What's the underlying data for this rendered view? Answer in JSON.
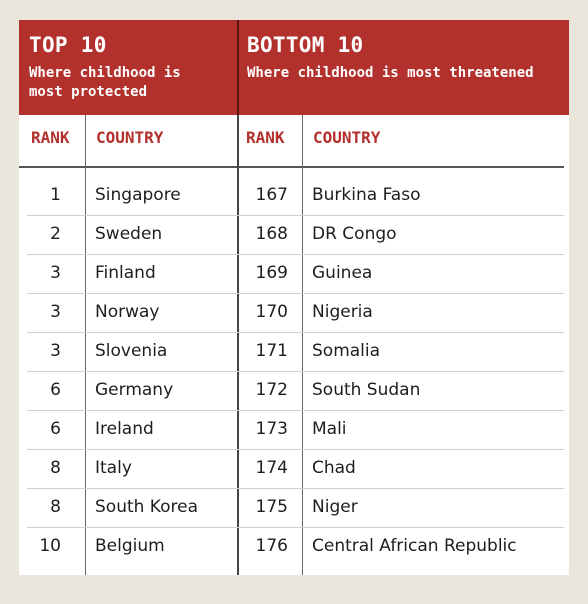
{
  "top": {
    "title": "TOP 10",
    "subtitle": "Where childhood is\nmost protected",
    "rank_header": "RANK",
    "country_header": "COUNTRY",
    "rows": [
      {
        "rank": "1",
        "country": "Singapore"
      },
      {
        "rank": "2",
        "country": "Sweden"
      },
      {
        "rank": "3",
        "country": "Finland"
      },
      {
        "rank": "3",
        "country": "Norway"
      },
      {
        "rank": "3",
        "country": "Slovenia"
      },
      {
        "rank": "6",
        "country": "Germany"
      },
      {
        "rank": "6",
        "country": "Ireland"
      },
      {
        "rank": "8",
        "country": "Italy"
      },
      {
        "rank": "8",
        "country": "South Korea"
      },
      {
        "rank": "10",
        "country": "Belgium"
      }
    ]
  },
  "bottom": {
    "title": "BOTTOM 10",
    "subtitle": "Where childhood is most threatened",
    "rank_header": "RANK",
    "country_header": "COUNTRY",
    "rows": [
      {
        "rank": "167",
        "country": "Burkina Faso"
      },
      {
        "rank": "168",
        "country": "DR Congo"
      },
      {
        "rank": "169",
        "country": "Guinea"
      },
      {
        "rank": "170",
        "country": "Nigeria"
      },
      {
        "rank": "171",
        "country": "Somalia"
      },
      {
        "rank": "172",
        "country": "South Sudan"
      },
      {
        "rank": "173",
        "country": "Mali"
      },
      {
        "rank": "174",
        "country": "Chad"
      },
      {
        "rank": "175",
        "country": "Niger"
      },
      {
        "rank": "176",
        "country": "Central African Republic"
      }
    ]
  },
  "colors": {
    "banner": "#b3312d",
    "header_text": "#b3312d",
    "background": "#ebe6dc"
  }
}
